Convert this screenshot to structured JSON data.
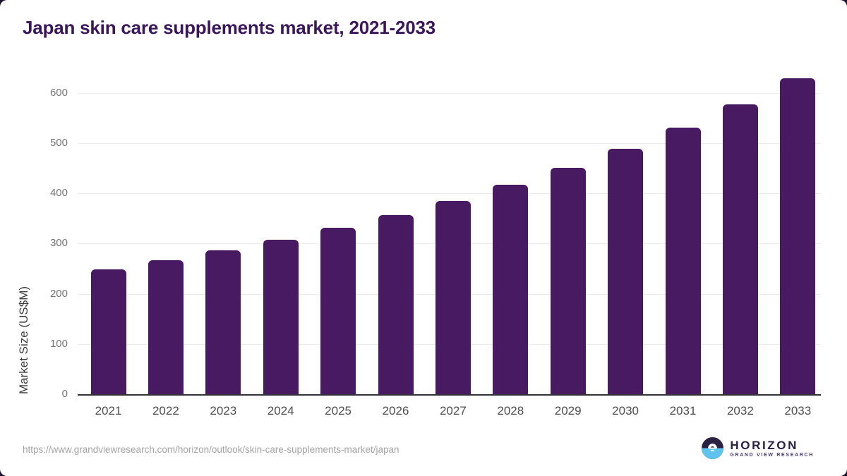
{
  "page": {
    "title": "Japan skin care supplements market, 2021-2033"
  },
  "chart_data": {
    "type": "bar",
    "title": "Japan skin care supplements market, 2021-2033",
    "categories": [
      "2021",
      "2022",
      "2023",
      "2024",
      "2025",
      "2026",
      "2027",
      "2028",
      "2029",
      "2030",
      "2031",
      "2032",
      "2033"
    ],
    "values": [
      249,
      267,
      287,
      308,
      331,
      357,
      385,
      417,
      450,
      488,
      530,
      577,
      629
    ],
    "xlabel": "",
    "ylabel": "Market Size (US$M)",
    "ylim": [
      0,
      650
    ],
    "yticks": [
      0,
      100,
      200,
      300,
      400,
      500,
      600
    ],
    "grid": true,
    "legend": "none",
    "bar_color": "#481a62"
  },
  "footer": {
    "source_url": "https://www.grandviewresearch.com/horizon/outlook/skin-care-supplements-market/japan",
    "logo": {
      "brand": "HORIZON",
      "tagline": "GRAND VIEW RESEARCH",
      "icon": "horizon-sun-over-water-icon"
    }
  },
  "colors": {
    "title": "#3a165a",
    "bar": "#481a62",
    "axis_line": "#33313c",
    "gridline": "#ececec",
    "tick_label": "#757575",
    "x_label": "#4f4f4f",
    "axis_title": "#3d3d3d",
    "url": "#a3a3a3",
    "logo_navy": "#2b2143",
    "logo_blue": "#5fc3f0",
    "logo_purple": "#443672",
    "frame_corner_bg": "#1d1330"
  }
}
